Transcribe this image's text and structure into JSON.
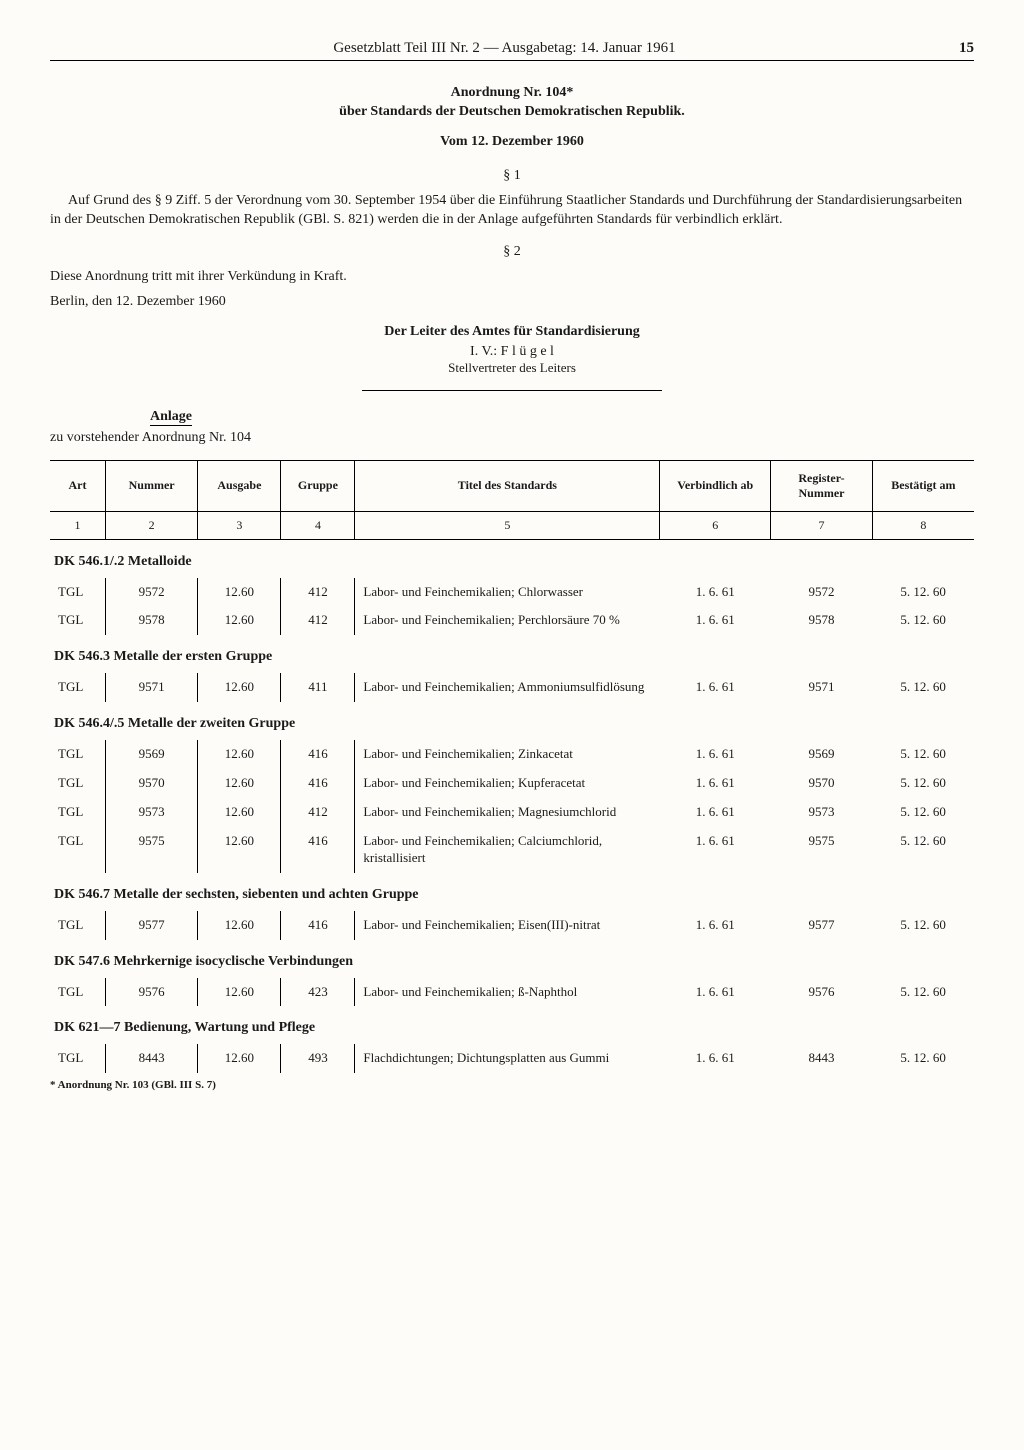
{
  "header": {
    "text": "Gesetzblatt Teil III Nr. 2 — Ausgabetag: 14. Januar 1961",
    "page": "15"
  },
  "title": {
    "line1": "Anordnung Nr. 104*",
    "line2": "über Standards der Deutschen Demokratischen Republik.",
    "date": "Vom 12. Dezember 1960"
  },
  "sections": {
    "s1": "§ 1",
    "p1": "Auf Grund des § 9 Ziff. 5 der Verordnung vom 30. September 1954 über die Einführung Staatlicher Standards und Durchführung der Standardisierungsarbeiten in der Deutschen Demokratischen Republik (GBl. S. 821) werden die in der Anlage aufgeführten Standards für verbindlich erklärt.",
    "s2": "§ 2",
    "p2": "Diese Anordnung tritt mit ihrer Verkündung in Kraft.",
    "place": "Berlin, den 12. Dezember 1960",
    "sign1": "Der Leiter des Amtes für Standardisierung",
    "sign2": "I. V.: F l ü g e l",
    "sign3": "Stellvertreter des Leiters"
  },
  "anlage": {
    "label": "Anlage",
    "sub": "zu vorstehender Anordnung Nr. 104"
  },
  "table": {
    "headers": [
      "Art",
      "Nummer",
      "Ausgabe",
      "Gruppe",
      "Titel des Standards",
      "Verbindlich ab",
      "Register-Nummer",
      "Bestätigt am"
    ],
    "colnums": [
      "1",
      "2",
      "3",
      "4",
      "5",
      "6",
      "7",
      "8"
    ],
    "groups": [
      {
        "title": "DK 546.1/.2 Metalloide",
        "rows": [
          {
            "art": "TGL",
            "num": "9572",
            "ausg": "12.60",
            "grp": "412",
            "titel": "Labor- und Feinchemikalien; Chlorwasser",
            "verb": "1. 6. 61",
            "reg": "9572",
            "best": "5. 12. 60"
          },
          {
            "art": "TGL",
            "num": "9578",
            "ausg": "12.60",
            "grp": "412",
            "titel": "Labor- und Feinchemikalien; Perchlorsäure 70 %",
            "verb": "1. 6. 61",
            "reg": "9578",
            "best": "5. 12. 60"
          }
        ]
      },
      {
        "title": "DK 546.3 Metalle der ersten Gruppe",
        "rows": [
          {
            "art": "TGL",
            "num": "9571",
            "ausg": "12.60",
            "grp": "411",
            "titel": "Labor- und Feinchemikalien; Ammoniumsulfidlösung",
            "verb": "1. 6. 61",
            "reg": "9571",
            "best": "5. 12. 60"
          }
        ]
      },
      {
        "title": "DK 546.4/.5 Metalle der zweiten Gruppe",
        "rows": [
          {
            "art": "TGL",
            "num": "9569",
            "ausg": "12.60",
            "grp": "416",
            "titel": "Labor- und Feinchemikalien; Zinkacetat",
            "verb": "1. 6. 61",
            "reg": "9569",
            "best": "5. 12. 60"
          },
          {
            "art": "TGL",
            "num": "9570",
            "ausg": "12.60",
            "grp": "416",
            "titel": "Labor- und Feinchemikalien; Kupferacetat",
            "verb": "1. 6. 61",
            "reg": "9570",
            "best": "5. 12. 60"
          },
          {
            "art": "TGL",
            "num": "9573",
            "ausg": "12.60",
            "grp": "412",
            "titel": "Labor- und Feinchemikalien; Magnesiumchlorid",
            "verb": "1. 6. 61",
            "reg": "9573",
            "best": "5. 12. 60"
          },
          {
            "art": "TGL",
            "num": "9575",
            "ausg": "12.60",
            "grp": "416",
            "titel": "Labor- und Feinchemikalien; Calciumchlorid, kristallisiert",
            "verb": "1. 6. 61",
            "reg": "9575",
            "best": "5. 12. 60"
          }
        ]
      },
      {
        "title": "DK 546.7 Metalle der sechsten, siebenten und achten Gruppe",
        "rows": [
          {
            "art": "TGL",
            "num": "9577",
            "ausg": "12.60",
            "grp": "416",
            "titel": "Labor- und Feinchemikalien; Eisen(III)-nitrat",
            "verb": "1. 6. 61",
            "reg": "9577",
            "best": "5. 12. 60"
          }
        ]
      },
      {
        "title": "DK 547.6 Mehrkernige isocyclische Verbindungen",
        "rows": [
          {
            "art": "TGL",
            "num": "9576",
            "ausg": "12.60",
            "grp": "423",
            "titel": "Labor- und Feinchemikalien; ß-Naphthol",
            "verb": "1. 6. 61",
            "reg": "9576",
            "best": "5. 12. 60"
          }
        ]
      },
      {
        "title": "DK 621—7 Bedienung, Wartung und Pflege",
        "rows": [
          {
            "art": "TGL",
            "num": "8443",
            "ausg": "12.60",
            "grp": "493",
            "titel": "Flachdichtungen; Dichtungsplatten aus Gummi",
            "verb": "1. 6. 61",
            "reg": "8443",
            "best": "5. 12. 60"
          }
        ]
      }
    ]
  },
  "footnote": "* Anordnung Nr. 103 (GBl. III S. 7)"
}
